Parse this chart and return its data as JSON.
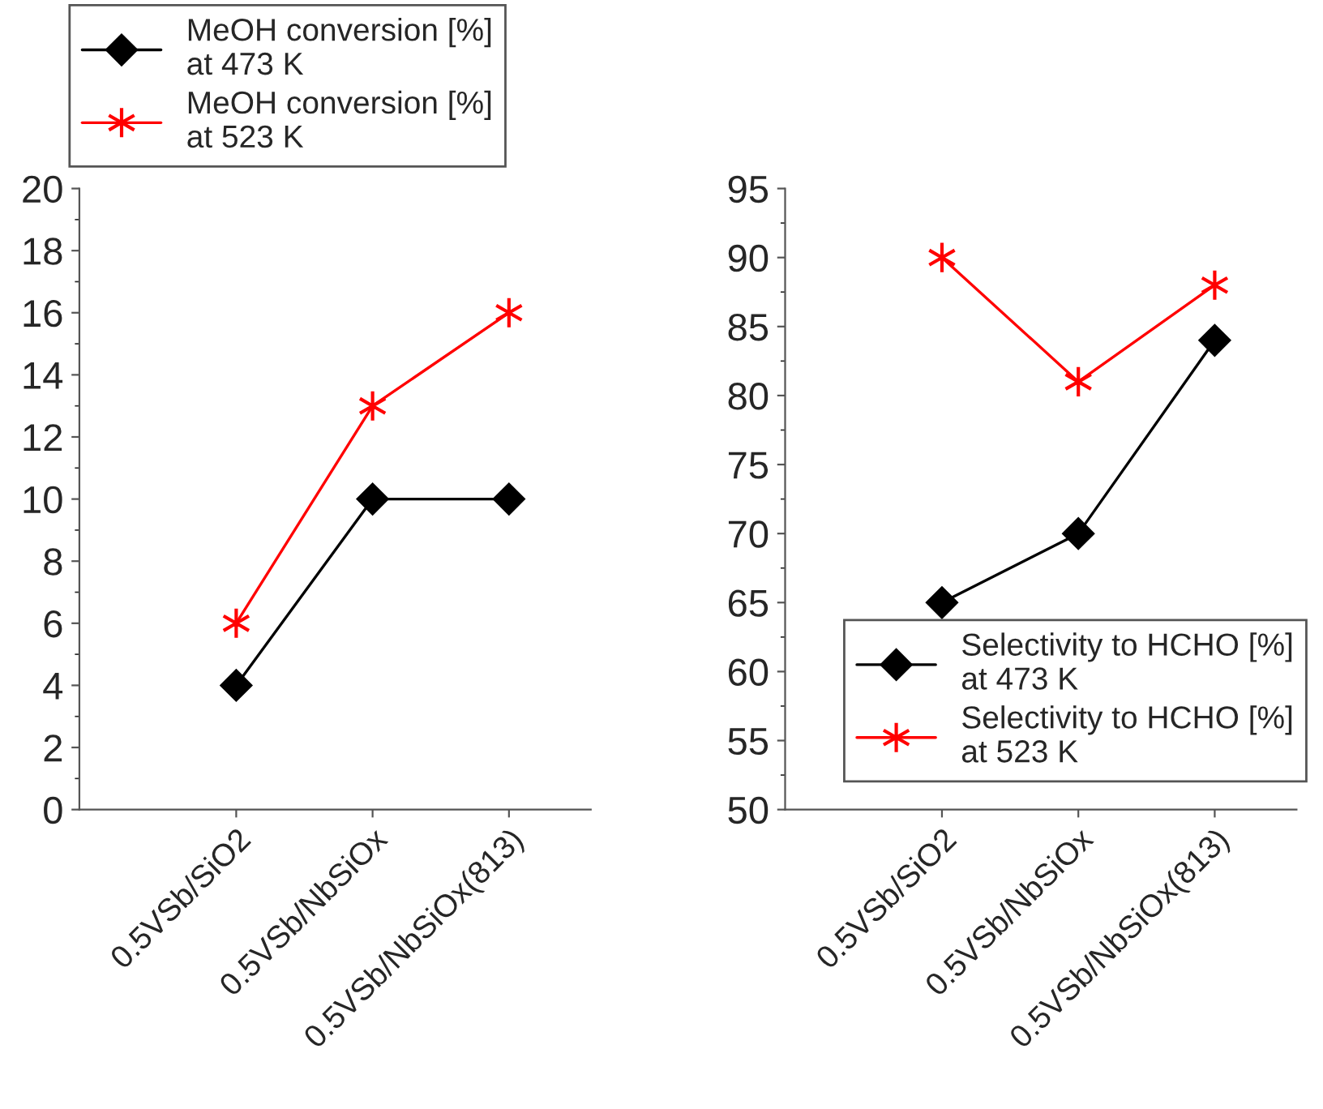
{
  "chart_data": [
    {
      "type": "line",
      "categories": [
        "0.5VSb/SiO2",
        "0.5VSb/NbSiOx",
        "0.5VSb/NbSiOx(813)"
      ],
      "ylim": [
        0,
        20
      ],
      "yticks": [
        0,
        2,
        4,
        6,
        8,
        10,
        12,
        14,
        16,
        18,
        20
      ],
      "grid": false,
      "legend": "top left",
      "line_style": "solid",
      "series": [
        {
          "name": "MeOH conversion [%]\nat 473 K",
          "color": "#000000",
          "marker": "diamond",
          "values": [
            4,
            10,
            10
          ]
        },
        {
          "name": "MeOH conversion [%]\nat 523 K",
          "color": "#ff0000",
          "marker": "cross",
          "values": [
            6,
            13,
            16
          ]
        }
      ]
    },
    {
      "type": "line",
      "categories": [
        "0.5VSb/SiO2",
        "0.5VSb/NbSiOx",
        "0.5VSb/NbSiOx(813)"
      ],
      "ylim": [
        50,
        95
      ],
      "yticks": [
        50,
        55,
        60,
        65,
        70,
        75,
        80,
        85,
        90,
        95
      ],
      "grid": false,
      "legend": "bottom right",
      "line_style": "solid",
      "series": [
        {
          "name": "Selectivity to HCHO [%]\nat 473 K",
          "color": "#000000",
          "marker": "diamond",
          "values": [
            65,
            70,
            84
          ]
        },
        {
          "name": "Selectivity to HCHO [%]\nat 523 K",
          "color": "#ff0000",
          "marker": "cross",
          "values": [
            90,
            81,
            88
          ]
        }
      ]
    }
  ]
}
